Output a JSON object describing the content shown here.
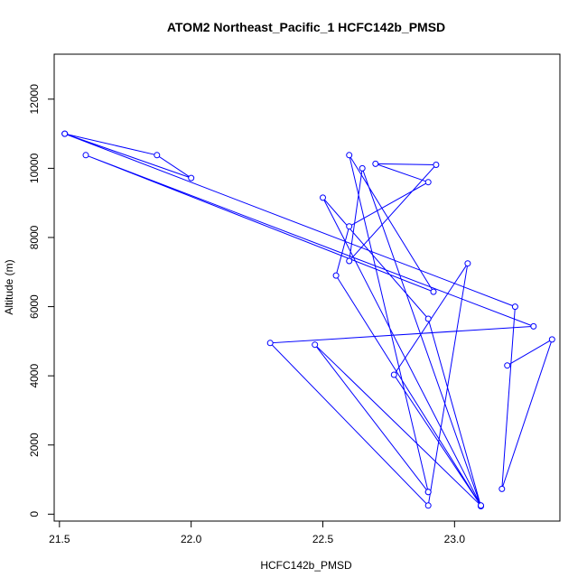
{
  "chart_data": {
    "type": "line",
    "title": "ATOM2 Northeast_Pacific_1 HCFC142b_PMSD",
    "xlabel": "HCFC142b_PMSD",
    "ylabel": "Altitude (m)",
    "xlim": [
      21.48,
      23.4
    ],
    "ylim": [
      -200,
      13300
    ],
    "x_ticks": [
      21.5,
      22.0,
      22.5,
      23.0
    ],
    "x_tick_labels": [
      "21.5",
      "22.0",
      "22.5",
      "23.0"
    ],
    "y_ticks": [
      0,
      2000,
      4000,
      6000,
      8000,
      10000,
      12000
    ],
    "y_tick_labels": [
      "0",
      "2000",
      "4000",
      "6000",
      "8000",
      "10000",
      "12000"
    ],
    "grid": false,
    "legend": "none",
    "line_color": "#0000ff",
    "point_marker": "open-circle",
    "series": [
      {
        "points": [
          [
            22.9,
            640
          ],
          [
            22.6,
            10380
          ],
          [
            22.92,
            6430
          ],
          [
            21.6,
            10380
          ],
          [
            23.3,
            5430
          ],
          [
            22.3,
            4950
          ],
          [
            22.9,
            250
          ],
          [
            23.05,
            7250
          ],
          [
            22.77,
            4030
          ],
          [
            23.1,
            250
          ],
          [
            22.5,
            9150
          ],
          [
            22.9,
            5650
          ],
          [
            23.1,
            230
          ],
          [
            22.65,
            10000
          ],
          [
            22.6,
            7320
          ],
          [
            22.93,
            10100
          ],
          [
            22.7,
            10130
          ],
          [
            22.9,
            9600
          ],
          [
            22.6,
            8320
          ],
          [
            22.55,
            6900
          ],
          [
            23.1,
            250
          ],
          [
            22.47,
            4900
          ],
          [
            22.9,
            640
          ]
        ]
      },
      {
        "points": [
          [
            23.2,
            4300
          ],
          [
            23.37,
            5050
          ],
          [
            23.18,
            730
          ],
          [
            23.23,
            6000
          ],
          [
            21.52,
            11000
          ],
          [
            21.87,
            10380
          ],
          [
            22.0,
            9720
          ],
          [
            21.52,
            11000
          ]
        ]
      }
    ]
  }
}
